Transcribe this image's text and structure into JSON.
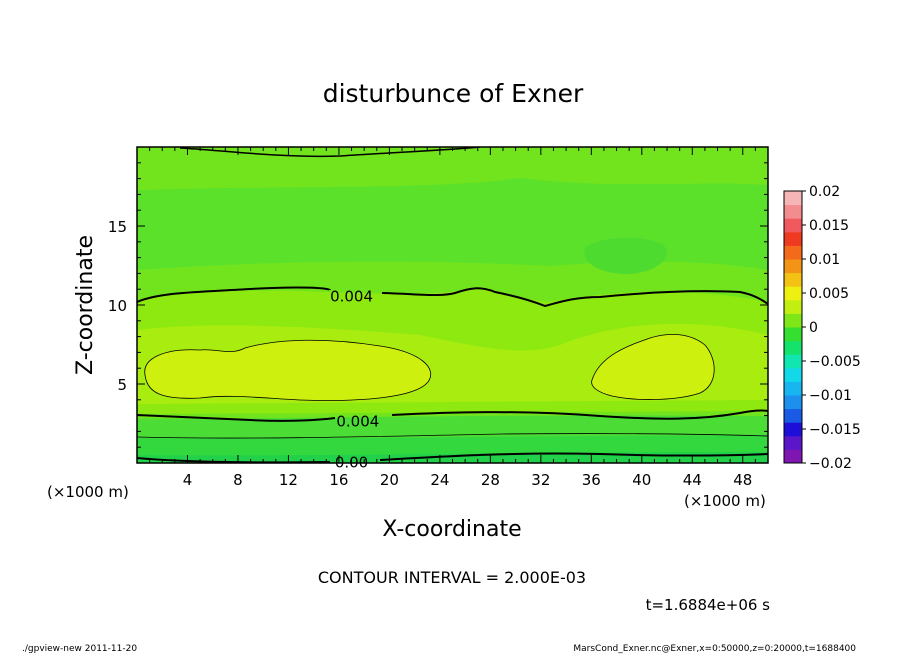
{
  "chart_data": {
    "type": "heatmap",
    "title": "disturbunce of Exner",
    "xlabel": "X-coordinate",
    "ylabel": "Z-coordinate",
    "x_unit_left": "(×1000 m)",
    "x_unit_right": "(×1000 m)",
    "xlim": [
      0,
      50
    ],
    "ylim": [
      0,
      20
    ],
    "x_ticks": [
      4,
      8,
      12,
      16,
      20,
      24,
      28,
      32,
      36,
      40,
      44,
      48
    ],
    "y_ticks": [
      5,
      10,
      15
    ],
    "colorbar": {
      "min": -0.02,
      "max": 0.02,
      "ticks": [
        0.02,
        0.015,
        0.01,
        0.005,
        0,
        -0.005,
        -0.01,
        -0.015,
        -0.02
      ],
      "tick_labels": [
        "0.02",
        "0.015",
        "0.01",
        "0.005",
        "0",
        "−0.005",
        "−0.01",
        "−0.015",
        "−0.02"
      ],
      "colors": [
        "#7f16b2",
        "#5a16c8",
        "#1e0fd8",
        "#1a5be6",
        "#1d8fec",
        "#17b6f0",
        "#12d8e8",
        "#11e6b0",
        "#14e26a",
        "#35df2f",
        "#7fe617",
        "#c2ee12",
        "#eef012",
        "#f3c214",
        "#f49416",
        "#f26a1a",
        "#ef3a22",
        "#f05a5e",
        "#f38c8e",
        "#f6b6b8"
      ]
    },
    "contour_labels": [
      {
        "text": "0.004",
        "x": 17,
        "z": 10.6
      },
      {
        "text": "0.004",
        "x": 17.5,
        "z": 2.7
      },
      {
        "text": "0.00",
        "x": 17,
        "z": 0.1
      }
    ],
    "contour_interval_text": "CONTOUR INTERVAL = 2.000E-03",
    "time_text": "t=1.6884e+06 s"
  },
  "footer": {
    "left": "./gpview-new  2011-11-20",
    "right": "MarsCond_Exner.nc@Exner,x=0:50000,z=0:20000,t=1688400"
  }
}
